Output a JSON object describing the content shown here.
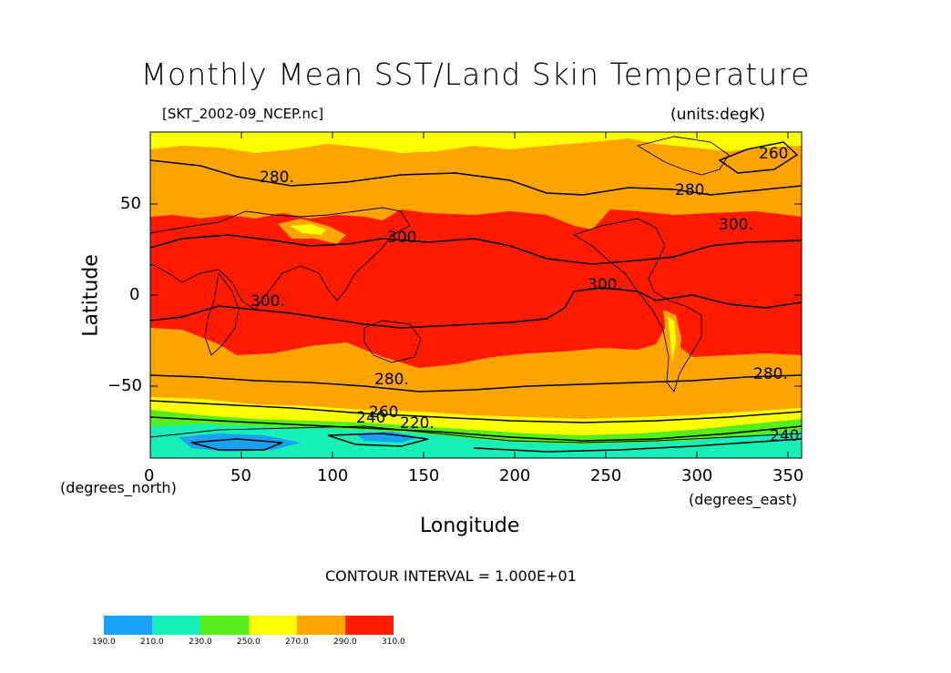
{
  "figure": {
    "title": "Monthly Mean SST/Land Skin Temperature",
    "dataset": "[SKT_2002-09_NCEP.nc]",
    "units": "(units:degK)",
    "xlabel": "Longitude",
    "ylabel": "Latitude",
    "x_units": "(degrees_east)",
    "y_units": "(degrees_north)",
    "contour_interval": "CONTOUR INTERVAL = 1.000E+01"
  },
  "axes": {
    "x_ticks": [
      "0",
      "50",
      "100",
      "150",
      "200",
      "250",
      "300",
      "350"
    ],
    "y_ticks": [
      "50",
      "0",
      "−50"
    ],
    "xlim": [
      0,
      357.5
    ],
    "ylim": [
      -90,
      90
    ]
  },
  "contour_labels": [
    {
      "text": "280.",
      "lon": 60,
      "lat": 62
    },
    {
      "text": "280.",
      "lon": 288,
      "lat": 55
    },
    {
      "text": "260",
      "lon": 334,
      "lat": 75
    },
    {
      "text": "300.",
      "lon": 312,
      "lat": 36
    },
    {
      "text": "300.",
      "lon": 130,
      "lat": 29
    },
    {
      "text": "300.",
      "lon": 240,
      "lat": 3
    },
    {
      "text": "300.",
      "lon": 55,
      "lat": -6
    },
    {
      "text": "280.",
      "lon": 123,
      "lat": -49
    },
    {
      "text": "280.",
      "lon": 331,
      "lat": -46
    },
    {
      "text": "260",
      "lon": 120,
      "lat": -67
    },
    {
      "text": "240",
      "lon": 113,
      "lat": -70
    },
    {
      "text": "220.",
      "lon": 137,
      "lat": -73
    },
    {
      "text": "240",
      "lon": 340,
      "lat": -80
    }
  ],
  "colorbar": {
    "ticks": [
      "190.0",
      "210.0",
      "230.0",
      "250.0",
      "270.0",
      "290.0",
      "310.0"
    ],
    "colors": [
      "#19a2f5",
      "#16f0b8",
      "#55ef1b",
      "#ffff00",
      "#ffa400",
      "#ff1a00"
    ]
  },
  "colors": {
    "cold": "#19a2f5",
    "cool": "#16f0b8",
    "green": "#55ef1b",
    "yellow": "#ffff00",
    "orange": "#ffa400",
    "red": "#ff1a00"
  }
}
